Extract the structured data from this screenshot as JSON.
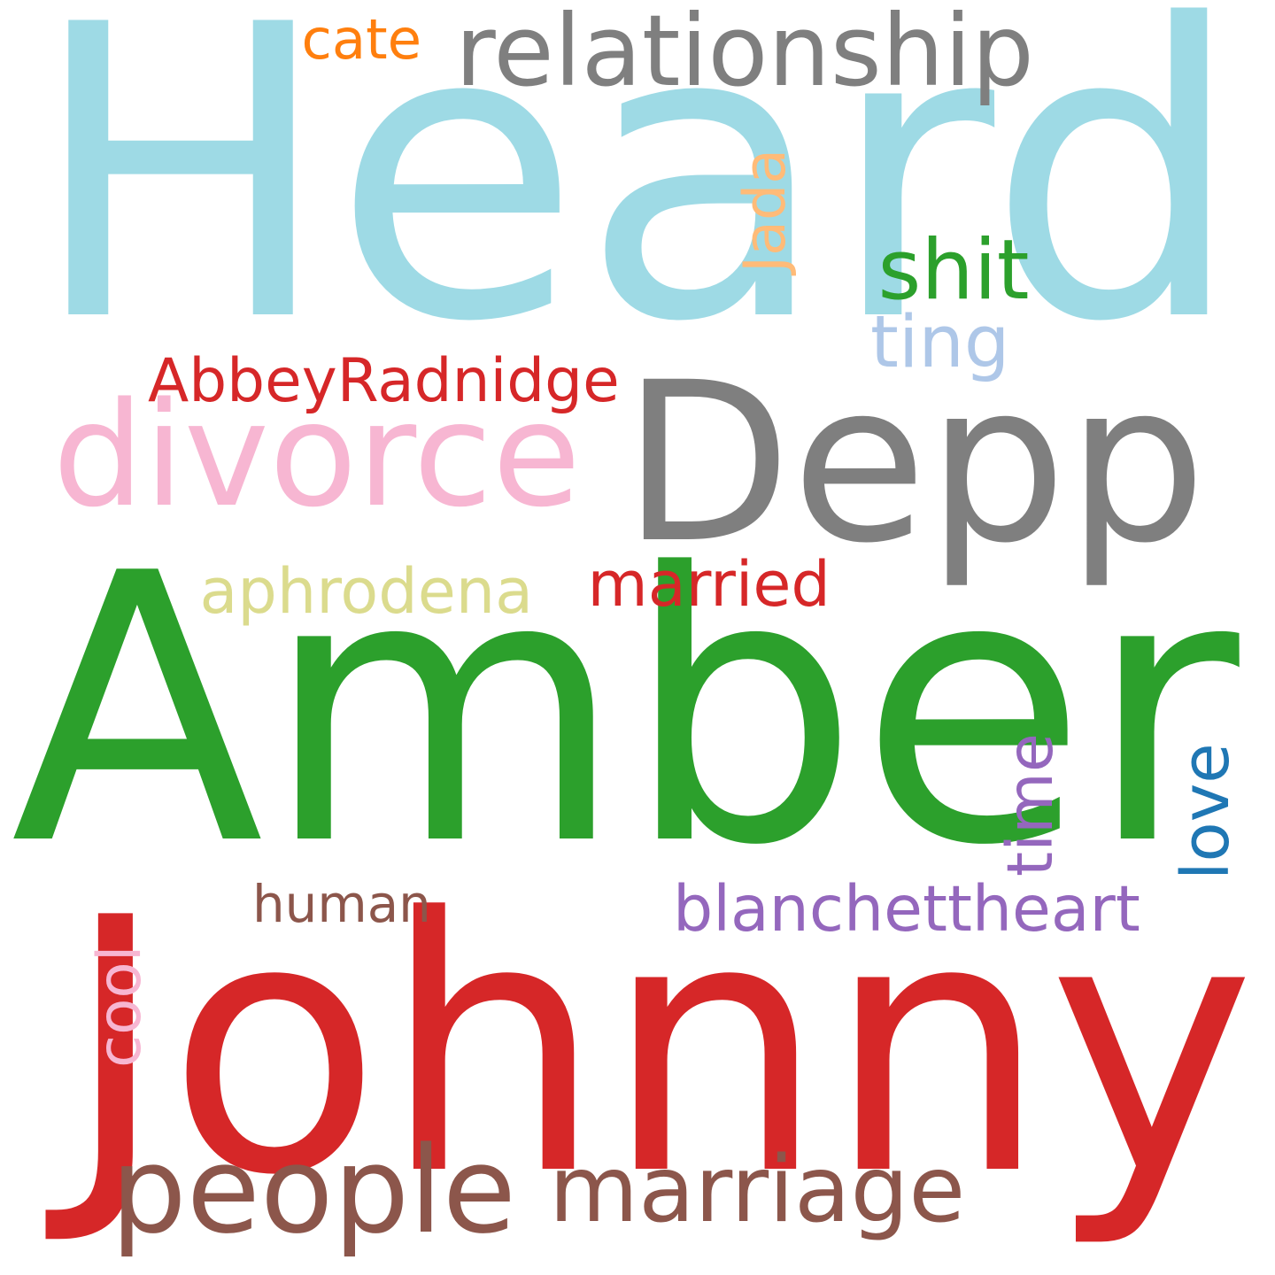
{
  "words": [
    {
      "text": "Heard",
      "color": "#9edae5",
      "orientation": "horizontal"
    },
    {
      "text": "Amber",
      "color": "#2ca02c",
      "orientation": "horizontal"
    },
    {
      "text": "Johnny",
      "color": "#d62728",
      "orientation": "horizontal"
    },
    {
      "text": "Depp",
      "color": "#7f7f7f",
      "orientation": "horizontal"
    },
    {
      "text": "divorce",
      "color": "#f7b6d2",
      "orientation": "horizontal"
    },
    {
      "text": "relationship",
      "color": "#7f7f7f",
      "orientation": "horizontal"
    },
    {
      "text": "people",
      "color": "#8c564b",
      "orientation": "horizontal"
    },
    {
      "text": "marriage",
      "color": "#8c564b",
      "orientation": "horizontal"
    },
    {
      "text": "AbbeyRadnidge",
      "color": "#d62728",
      "orientation": "horizontal"
    },
    {
      "text": "aphrodena",
      "color": "#dbdb8d",
      "orientation": "horizontal"
    },
    {
      "text": "married",
      "color": "#d62728",
      "orientation": "horizontal"
    },
    {
      "text": "blanchettheart",
      "color": "#9467bd",
      "orientation": "horizontal"
    },
    {
      "text": "shit",
      "color": "#2ca02c",
      "orientation": "horizontal"
    },
    {
      "text": "ting",
      "color": "#aec7e8",
      "orientation": "horizontal"
    },
    {
      "text": "cate",
      "color": "#ff7f0e",
      "orientation": "horizontal"
    },
    {
      "text": "human",
      "color": "#8c564b",
      "orientation": "horizontal"
    },
    {
      "text": "Jada",
      "color": "#ffbb78",
      "orientation": "vertical"
    },
    {
      "text": "time",
      "color": "#9467bd",
      "orientation": "vertical"
    },
    {
      "text": "love",
      "color": "#1f77b4",
      "orientation": "vertical"
    },
    {
      "text": "cool",
      "color": "#f7b6d2",
      "orientation": "vertical"
    }
  ]
}
